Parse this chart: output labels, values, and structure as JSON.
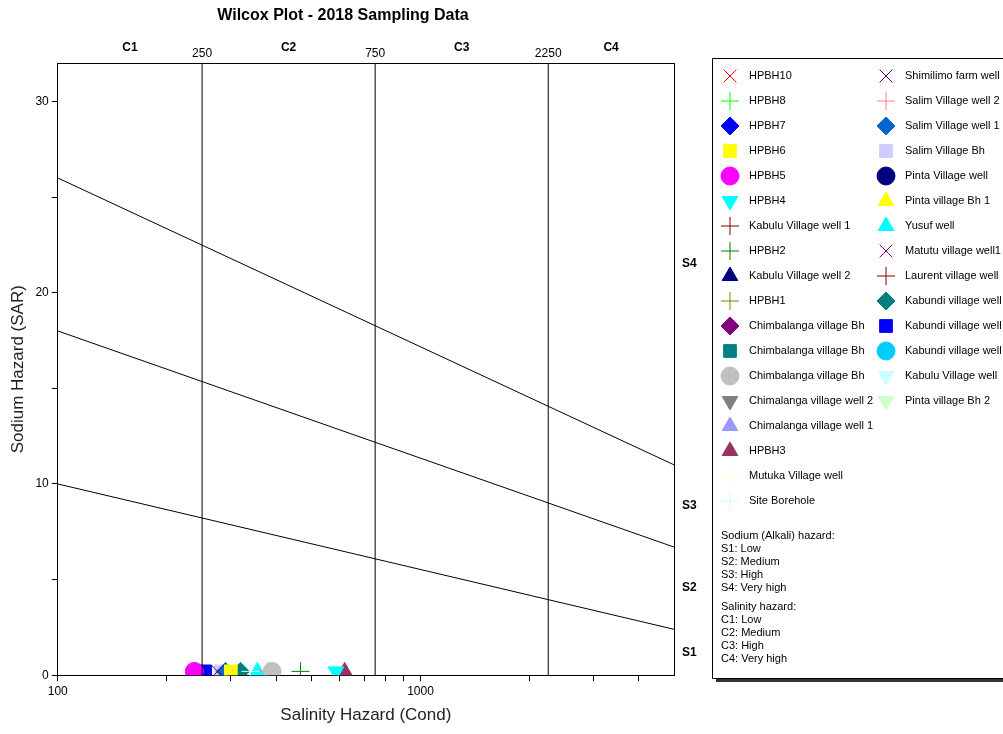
{
  "chart_data": {
    "type": "scatter",
    "title": "Wilcox Plot - 2018 Sampling Data",
    "xlabel": "Salinity Hazard (Cond)",
    "ylabel": "Sodium Hazard (SAR)",
    "log": "x",
    "xlim": [
      100,
      5000
    ],
    "ylim": [
      0,
      32
    ],
    "xticks": [
      100,
      {
        "value": 200,
        "label": null
      },
      {
        "value": 300,
        "label": null
      },
      {
        "value": 400,
        "label": null
      },
      {
        "value": 500,
        "label": null
      },
      {
        "value": 600,
        "label": null
      },
      {
        "value": 700,
        "label": null
      },
      {
        "value": 800,
        "label": null
      },
      {
        "value": 900,
        "label": null
      },
      1000,
      {
        "value": 2000,
        "label": null
      },
      {
        "value": 3000,
        "label": null
      },
      {
        "value": 4000,
        "label": null
      }
    ],
    "yticks": [
      0,
      {
        "value": 5,
        "label": null
      },
      10,
      {
        "value": 15,
        "label": null
      },
      20,
      {
        "value": 25,
        "label": null
      },
      30
    ],
    "grid": false,
    "legend": "right",
    "ref_lines": [
      {
        "axis": "x",
        "value": 250,
        "label": "250"
      },
      {
        "axis": "x",
        "value": 750,
        "label": "750"
      },
      {
        "axis": "x",
        "value": 2250,
        "label": "2250"
      }
    ],
    "annotations": [
      "C1",
      "C2",
      "C3",
      "C4",
      "S1",
      "S2",
      "S3",
      "S4",
      "Sodium (Alkali) hazard:\nS1: Low\nS2: Medium\nS3: High\nS4: Very high",
      "Salinity hazard:\nC1: Low\nC2: Medium\nC3: High\nC4: Very high"
    ],
    "series": [
      {
        "type": "line",
        "color": "#000000",
        "marker": "none",
        "x": [
          100,
          5000
        ],
        "values": [
          10,
          2.4
        ]
      },
      {
        "type": "line",
        "color": "#000000",
        "marker": "none",
        "x": [
          100,
          5000
        ],
        "values": [
          18,
          6.7
        ]
      },
      {
        "type": "line",
        "color": "#000000",
        "marker": "none",
        "x": [
          100,
          5000
        ],
        "values": [
          26,
          11
        ]
      },
      {
        "name": "HPBH10",
        "color": "#ff0000",
        "marker": "x",
        "x": [
          null
        ],
        "values": [
          null
        ]
      },
      {
        "name": "HPBH8",
        "color": "#00ff00",
        "marker": "cross",
        "x": [
          null
        ],
        "values": [
          null
        ]
      },
      {
        "name": "HPBH7",
        "color": "#0000ff",
        "marker": "diamond",
        "x": [
          null
        ],
        "values": [
          null
        ]
      },
      {
        "name": "HPBH6",
        "color": "#ffff00",
        "marker": "square",
        "x": [
          300
        ],
        "values": [
          0.2
        ]
      },
      {
        "name": "HPBH5",
        "color": "#ff00ff",
        "marker": "circle",
        "x": [
          238
        ],
        "values": [
          0.2
        ]
      },
      {
        "name": "HPBH4",
        "color": "#00ffff",
        "marker": "triangle-down",
        "x": [
          585
        ],
        "values": [
          0.2
        ]
      },
      {
        "name": "Kabulu Village well 1",
        "color": "#800000",
        "marker": "cross",
        "x": [
          null
        ],
        "values": [
          null
        ]
      },
      {
        "name": "HPBH2",
        "color": "#008000",
        "marker": "cross",
        "x": [
          467
        ],
        "values": [
          0.2
        ]
      },
      {
        "name": "Kabulu Village well 2",
        "color": "#000080",
        "marker": "triangle",
        "x": [
          null
        ],
        "values": [
          null
        ]
      },
      {
        "name": "HPBH1",
        "color": "#808000",
        "marker": "cross",
        "x": [
          null
        ],
        "values": [
          null
        ]
      },
      {
        "name": "Chimbalanga village Bh",
        "color": "#800080",
        "marker": "diamond",
        "x": [
          null
        ],
        "values": [
          null
        ]
      },
      {
        "name": "Chimbalanga village Bh",
        "color": "#008080",
        "marker": "square",
        "x": [
          null
        ],
        "values": [
          null
        ]
      },
      {
        "name": "Chimbalanga village Bh",
        "color": "#c0c0c0",
        "marker": "circle",
        "x": [
          390
        ],
        "values": [
          0.2
        ]
      },
      {
        "name": "Chimalanga village well 2",
        "color": "#808080",
        "marker": "triangle-down",
        "x": [
          null
        ],
        "values": [
          null
        ]
      },
      {
        "name": "Chimalanga village well 1",
        "color": "#9999ff",
        "marker": "triangle",
        "x": [
          null
        ],
        "values": [
          null
        ]
      },
      {
        "name": "HPBH3",
        "color": "#993366",
        "marker": "triangle",
        "x": [
          618
        ],
        "values": [
          0.2
        ]
      },
      {
        "name": "Mutuka Village well",
        "color": "#ffffcc",
        "marker": "cross",
        "x": [
          null
        ],
        "values": [
          null
        ]
      },
      {
        "name": "Site Borehole",
        "color": "#ccffff",
        "marker": "cross",
        "x": [
          340
        ],
        "values": [
          0.2
        ]
      },
      {
        "name": "Shimilimo farm well",
        "color": "#660066",
        "marker": "x",
        "x": [
          276
        ],
        "values": [
          0.2
        ]
      },
      {
        "name": "Salim Village well 2",
        "color": "#ff8080",
        "marker": "cross",
        "x": [
          378
        ],
        "values": [
          0.2
        ]
      },
      {
        "name": "Salim Village well 1",
        "color": "#0066cc",
        "marker": "diamond",
        "x": [
          290
        ],
        "values": [
          0.2
        ]
      },
      {
        "name": "Salim Village Bh",
        "color": "#ccccff",
        "marker": "square",
        "x": [
          282
        ],
        "values": [
          0.2
        ]
      },
      {
        "name": "Pinta Village well",
        "color": "#000080",
        "marker": "circle",
        "x": [
          null
        ],
        "values": [
          null
        ]
      },
      {
        "name": "Pinta village Bh 1",
        "color": "#ffff00",
        "marker": "triangle",
        "x": [
          null
        ],
        "values": [
          null
        ]
      },
      {
        "name": "Yusuf well",
        "color": "#00ffff",
        "marker": "triangle",
        "x": [
          355
        ],
        "values": [
          0.2
        ]
      },
      {
        "name": "Matutu village well1",
        "color": "#800080",
        "marker": "x",
        "x": [
          null
        ],
        "values": [
          null
        ]
      },
      {
        "name": "Laurent village well",
        "color": "#800000",
        "marker": "cross",
        "x": [
          null
        ],
        "values": [
          null
        ]
      },
      {
        "name": "Kabundi village well",
        "color": "#008080",
        "marker": "diamond",
        "x": [
          319
        ],
        "values": [
          0.2
        ]
      },
      {
        "name": "Kabundi village well",
        "color": "#0000ff",
        "marker": "square",
        "x": [
          255
        ],
        "values": [
          0.2
        ]
      },
      {
        "name": "Kabundi village well",
        "color": "#00ccff",
        "marker": "circle",
        "x": [
          null
        ],
        "values": [
          null
        ]
      },
      {
        "name": "Kabulu Village well",
        "color": "#ccffff",
        "marker": "triangle-down",
        "x": [
          null
        ],
        "values": [
          null
        ]
      },
      {
        "name": "Pinta village Bh 2",
        "color": "#ccffcc",
        "marker": "triangle-down",
        "x": [
          null
        ],
        "values": [
          null
        ]
      }
    ]
  }
}
